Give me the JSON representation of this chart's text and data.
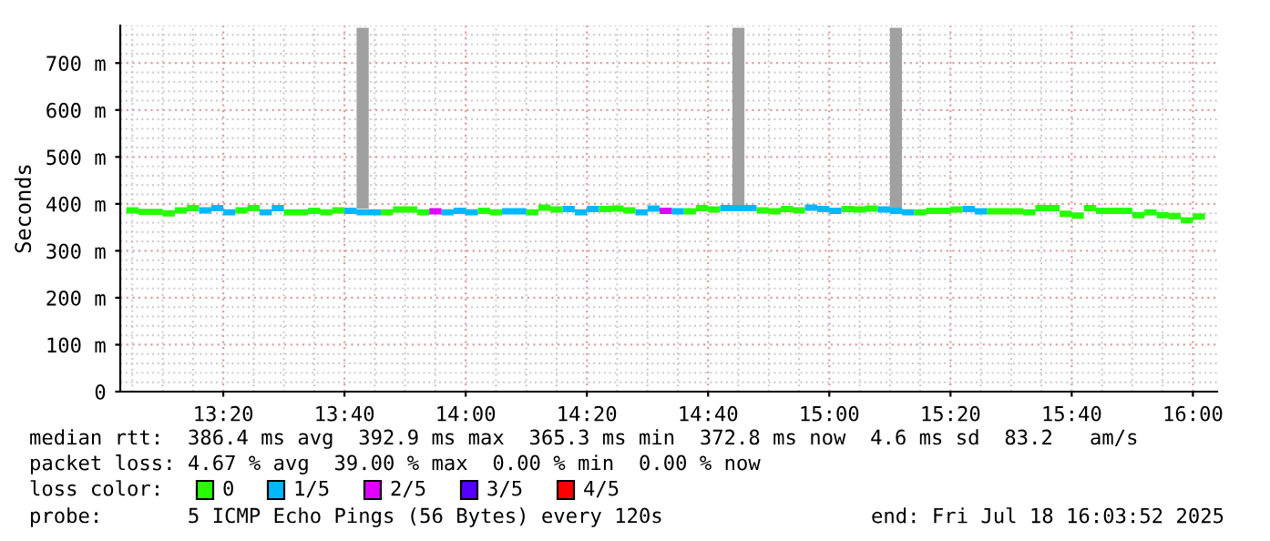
{
  "chart_data": {
    "type": "step",
    "ylabel": "Seconds",
    "legend_title": "loss color:",
    "legend": "bottom",
    "grid": true,
    "xlim": [
      "2025-07-18T13:03",
      "2025-07-18T16:04"
    ],
    "xticks": [
      {
        "value": "2025-07-18T13:20",
        "label": "13:20"
      },
      {
        "value": "2025-07-18T13:40",
        "label": "13:40"
      },
      {
        "value": "2025-07-18T14:00",
        "label": "14:00"
      },
      {
        "value": "2025-07-18T14:20",
        "label": "14:20"
      },
      {
        "value": "2025-07-18T14:40",
        "label": "14:40"
      },
      {
        "value": "2025-07-18T15:00",
        "label": "15:00"
      },
      {
        "value": "2025-07-18T15:20",
        "label": "15:20"
      },
      {
        "value": "2025-07-18T15:40",
        "label": "15:40"
      },
      {
        "value": "2025-07-18T16:00",
        "label": "16:00"
      }
    ],
    "ylim": [
      0,
      780
    ],
    "yticks": [
      0,
      {
        "value": 100,
        "label": "100 m"
      },
      {
        "value": 200,
        "label": "200 m"
      },
      {
        "value": 300,
        "label": "300 m"
      },
      {
        "value": 400,
        "label": "400 m"
      },
      {
        "value": 500,
        "label": "500 m"
      },
      {
        "value": 600,
        "label": "600 m"
      },
      {
        "value": 700,
        "label": "700 m"
      }
    ],
    "series": [
      {
        "type": "bar",
        "color": "#a0a0a0",
        "x": [
          "2025-07-18T13:43",
          "2025-07-18T14:45",
          "2025-07-18T15:11"
        ],
        "base": [
          390,
          391,
          385
        ],
        "values": [
          385,
          384,
          390
        ]
      },
      {
        "name": "0",
        "color": "#26ff00",
        "x": [
          "2025-07-18T13:05",
          "2025-07-18T13:07",
          "2025-07-18T13:09",
          "2025-07-18T13:11",
          "2025-07-18T13:13",
          "2025-07-18T13:15",
          "2025-07-18T13:23",
          "2025-07-18T13:25",
          "2025-07-18T13:31",
          "2025-07-18T13:33",
          "2025-07-18T13:35",
          "2025-07-18T13:37",
          "2025-07-18T13:39",
          "2025-07-18T13:47",
          "2025-07-18T13:49",
          "2025-07-18T13:51",
          "2025-07-18T13:53",
          "2025-07-18T14:03",
          "2025-07-18T14:05",
          "2025-07-18T14:11",
          "2025-07-18T14:13",
          "2025-07-18T14:15",
          "2025-07-18T14:23",
          "2025-07-18T14:25",
          "2025-07-18T14:27",
          "2025-07-18T14:37",
          "2025-07-18T14:39",
          "2025-07-18T14:41",
          "2025-07-18T14:49",
          "2025-07-18T14:51",
          "2025-07-18T14:53",
          "2025-07-18T14:55",
          "2025-07-18T15:03",
          "2025-07-18T15:05",
          "2025-07-18T15:07",
          "2025-07-18T15:15",
          "2025-07-18T15:17",
          "2025-07-18T15:19",
          "2025-07-18T15:21",
          "2025-07-18T15:27",
          "2025-07-18T15:29",
          "2025-07-18T15:31",
          "2025-07-18T15:33",
          "2025-07-18T15:35",
          "2025-07-18T15:37",
          "2025-07-18T15:39",
          "2025-07-18T15:41",
          "2025-07-18T15:43",
          "2025-07-18T15:45",
          "2025-07-18T15:47",
          "2025-07-18T15:49",
          "2025-07-18T15:51",
          "2025-07-18T15:53",
          "2025-07-18T15:55",
          "2025-07-18T15:57",
          "2025-07-18T15:59",
          "2025-07-18T16:01"
        ],
        "values": [
          386,
          383,
          383,
          380,
          386,
          391,
          386,
          391,
          382,
          382,
          385,
          382,
          386,
          382,
          388,
          388,
          382,
          385,
          382,
          382,
          392,
          388,
          389,
          390,
          386,
          384,
          391,
          388,
          386,
          384,
          389,
          386,
          389,
          388,
          390,
          382,
          385,
          385,
          388,
          384,
          384,
          384,
          382,
          391,
          391,
          379,
          375,
          391,
          385,
          385,
          385,
          376,
          382,
          376,
          374,
          365,
          373
        ]
      },
      {
        "name": "1/5",
        "color": "#00b8ff",
        "x": [
          "2025-07-18T13:17",
          "2025-07-18T13:19",
          "2025-07-18T13:21",
          "2025-07-18T13:27",
          "2025-07-18T13:29",
          "2025-07-18T13:41",
          "2025-07-18T13:43",
          "2025-07-18T13:45",
          "2025-07-18T13:57",
          "2025-07-18T13:59",
          "2025-07-18T14:01",
          "2025-07-18T14:07",
          "2025-07-18T14:09",
          "2025-07-18T14:17",
          "2025-07-18T14:19",
          "2025-07-18T14:21",
          "2025-07-18T14:29",
          "2025-07-18T14:31",
          "2025-07-18T14:35",
          "2025-07-18T14:43",
          "2025-07-18T14:45",
          "2025-07-18T14:47",
          "2025-07-18T14:57",
          "2025-07-18T14:59",
          "2025-07-18T15:01",
          "2025-07-18T15:09",
          "2025-07-18T15:11",
          "2025-07-18T15:13",
          "2025-07-18T15:23",
          "2025-07-18T15:25"
        ],
        "values": [
          386,
          391,
          382,
          382,
          391,
          385,
          382,
          382,
          382,
          385,
          382,
          384,
          384,
          389,
          382,
          389,
          382,
          390,
          384,
          391,
          391,
          391,
          392,
          389,
          385,
          388,
          385,
          382,
          389,
          384
        ]
      },
      {
        "name": "2/5",
        "color": "#e000ff",
        "x": [
          "2025-07-18T13:55",
          "2025-07-18T14:33"
        ],
        "values": [
          384,
          385
        ]
      },
      {
        "name": "3/5",
        "color": "#5500ff"
      },
      {
        "name": "4/5",
        "color": "#ff0000"
      }
    ],
    "annotations": [
      "median rtt:  386.4 ms avg  392.9 ms max  365.3 ms min  372.8 ms now  4.6 ms sd  83.2   am/s",
      "packet loss: 4.67 % avg  39.00 % max  0.00 % min  0.00 % now",
      "probe:       5 ICMP Echo Pings (56 Bytes) every 120s",
      "end: Fri Jul 18 16:03:52 2025"
    ]
  }
}
